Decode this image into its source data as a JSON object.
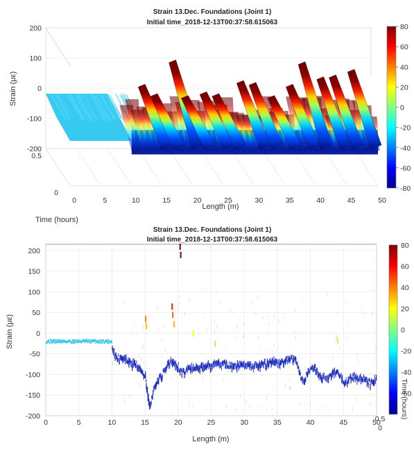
{
  "chart_data": [
    {
      "type": "surface",
      "title": "Strain 13.Dec. Foundations (Joint 1)",
      "subtitle": "Initial time_2018-12-13T00:37:58.615063",
      "xlabel": "Length (m)",
      "ylabel": "Time (hours)",
      "zlabel": "Strain (με)",
      "xlim": [
        0,
        50
      ],
      "ylim": [
        0,
        0.5
      ],
      "zlim": [
        -200,
        200
      ],
      "x_ticks": [
        "0",
        "5",
        "10",
        "15",
        "20",
        "25",
        "30",
        "35",
        "40",
        "45",
        "50"
      ],
      "y_ticks": [
        "0",
        "0.5"
      ],
      "z_ticks": [
        "200",
        "100",
        "0",
        "-100",
        "-200"
      ],
      "colorbar_ticks": [
        "80",
        "60",
        "40",
        "20",
        "0",
        "-20",
        "-40",
        "-60",
        "-80"
      ],
      "colorbar_range": [
        -80,
        80
      ],
      "colormap": "jet",
      "baseline": {
        "x_range": [
          0,
          10
        ],
        "strain": -20
      },
      "peaks": [
        {
          "x": 15,
          "strain": 80
        },
        {
          "x": 17,
          "strain": 30
        },
        {
          "x": 20,
          "strain": 210
        },
        {
          "x": 22,
          "strain": 20
        },
        {
          "x": 25,
          "strain": 40
        },
        {
          "x": 27,
          "strain": 30
        },
        {
          "x": 31,
          "strain": 100
        },
        {
          "x": 33,
          "strain": 90
        },
        {
          "x": 36,
          "strain": 20
        },
        {
          "x": 39,
          "strain": 80
        },
        {
          "x": 41,
          "strain": 200
        },
        {
          "x": 44,
          "strain": 120
        },
        {
          "x": 46,
          "strain": 130
        },
        {
          "x": 49,
          "strain": 160
        }
      ]
    },
    {
      "type": "scatter",
      "title": "Strain 13.Dec. Foundations (Joint 1)",
      "subtitle": "Initial time_2018-12-13T00:37:58.615063",
      "xlabel": "Length (m)",
      "ylabel": "Strain (με)",
      "colorbar_label": "Time (hours)",
      "xlim": [
        0,
        50
      ],
      "ylim": [
        -200,
        215
      ],
      "x_ticks": [
        "0",
        "5",
        "10",
        "15",
        "20",
        "25",
        "30",
        "35",
        "40",
        "45",
        "50"
      ],
      "y_ticks": [
        "200",
        "150",
        "100",
        "50",
        "0",
        "-50",
        "-100",
        "-150",
        "-200"
      ],
      "colorbar_ticks": [
        "80",
        "60",
        "40",
        "20",
        "0",
        "-20",
        "-40",
        "-60"
      ],
      "colorbar_range": [
        -80,
        80
      ],
      "overlap_ticks": [
        "0.5",
        "0"
      ],
      "grid": true,
      "baseline": {
        "x_range": [
          0,
          10
        ],
        "strain": -20
      },
      "profile": [
        [
          10.0,
          -35
        ],
        [
          10.5,
          -55
        ],
        [
          11,
          -58
        ],
        [
          11.5,
          -60
        ],
        [
          12,
          -60
        ],
        [
          12.5,
          -68
        ],
        [
          13,
          -72
        ],
        [
          13.5,
          -70
        ],
        [
          14,
          -82
        ],
        [
          14.5,
          -95
        ],
        [
          15,
          -100
        ],
        [
          15.3,
          -140
        ],
        [
          15.5,
          -160
        ],
        [
          15.7,
          -180
        ],
        [
          16,
          -150
        ],
        [
          16.5,
          -120
        ],
        [
          17,
          -110
        ],
        [
          17.5,
          -100
        ],
        [
          18,
          -88
        ],
        [
          18.5,
          -72
        ],
        [
          19,
          -62
        ],
        [
          19.5,
          -72
        ],
        [
          20,
          -80
        ],
        [
          20.5,
          -95
        ],
        [
          21,
          -92
        ],
        [
          21.5,
          -85
        ],
        [
          22,
          -80
        ],
        [
          22.5,
          -82
        ],
        [
          23,
          -85
        ],
        [
          23.5,
          -80
        ],
        [
          24,
          -78
        ],
        [
          24.5,
          -72
        ],
        [
          25,
          -85
        ],
        [
          25.5,
          -68
        ],
        [
          26,
          -70
        ],
        [
          26.5,
          -78
        ],
        [
          27,
          -72
        ],
        [
          27.5,
          -76
        ],
        [
          28,
          -80
        ],
        [
          28.5,
          -74
        ],
        [
          29,
          -76
        ],
        [
          29.5,
          -74
        ],
        [
          30,
          -78
        ],
        [
          30.5,
          -76
        ],
        [
          31,
          -79
        ],
        [
          31.5,
          -75
        ],
        [
          32,
          -76
        ],
        [
          32.5,
          -74
        ],
        [
          33,
          -72
        ],
        [
          33.5,
          -70
        ],
        [
          34,
          -68
        ],
        [
          34.5,
          -64
        ],
        [
          35,
          -72
        ],
        [
          35.5,
          -70
        ],
        [
          36,
          -66
        ],
        [
          36.5,
          -62
        ],
        [
          37,
          -60
        ],
        [
          37.5,
          -64
        ],
        [
          38,
          -70
        ],
        [
          38.5,
          -110
        ],
        [
          39,
          -120
        ],
        [
          39.5,
          -95
        ],
        [
          40,
          -88
        ],
        [
          40.5,
          -82
        ],
        [
          41,
          -92
        ],
        [
          41.5,
          -108
        ],
        [
          42,
          -102
        ],
        [
          42.5,
          -110
        ],
        [
          43,
          -100
        ],
        [
          43.5,
          -92
        ],
        [
          44,
          -95
        ],
        [
          44.5,
          -102
        ],
        [
          45,
          -120
        ],
        [
          45.5,
          -115
        ],
        [
          46,
          -108
        ],
        [
          46.5,
          -102
        ],
        [
          47,
          -112
        ],
        [
          47.5,
          -106
        ],
        [
          48,
          -110
        ],
        [
          48.5,
          -115
        ],
        [
          49,
          -120
        ],
        [
          49.5,
          -112
        ],
        [
          50,
          -108
        ]
      ],
      "hot_points": [
        {
          "x": 15.0,
          "y": 35
        },
        {
          "x": 15.1,
          "y": 18
        },
        {
          "x": 19.0,
          "y": 65
        },
        {
          "x": 19.1,
          "y": 45
        },
        {
          "x": 19.3,
          "y": 22
        },
        {
          "x": 20.2,
          "y": 210
        },
        {
          "x": 20.3,
          "y": 190
        },
        {
          "x": 22.2,
          "y": 0
        },
        {
          "x": 25.5,
          "y": -25
        },
        {
          "x": 44.0,
          "y": -18
        }
      ]
    }
  ]
}
